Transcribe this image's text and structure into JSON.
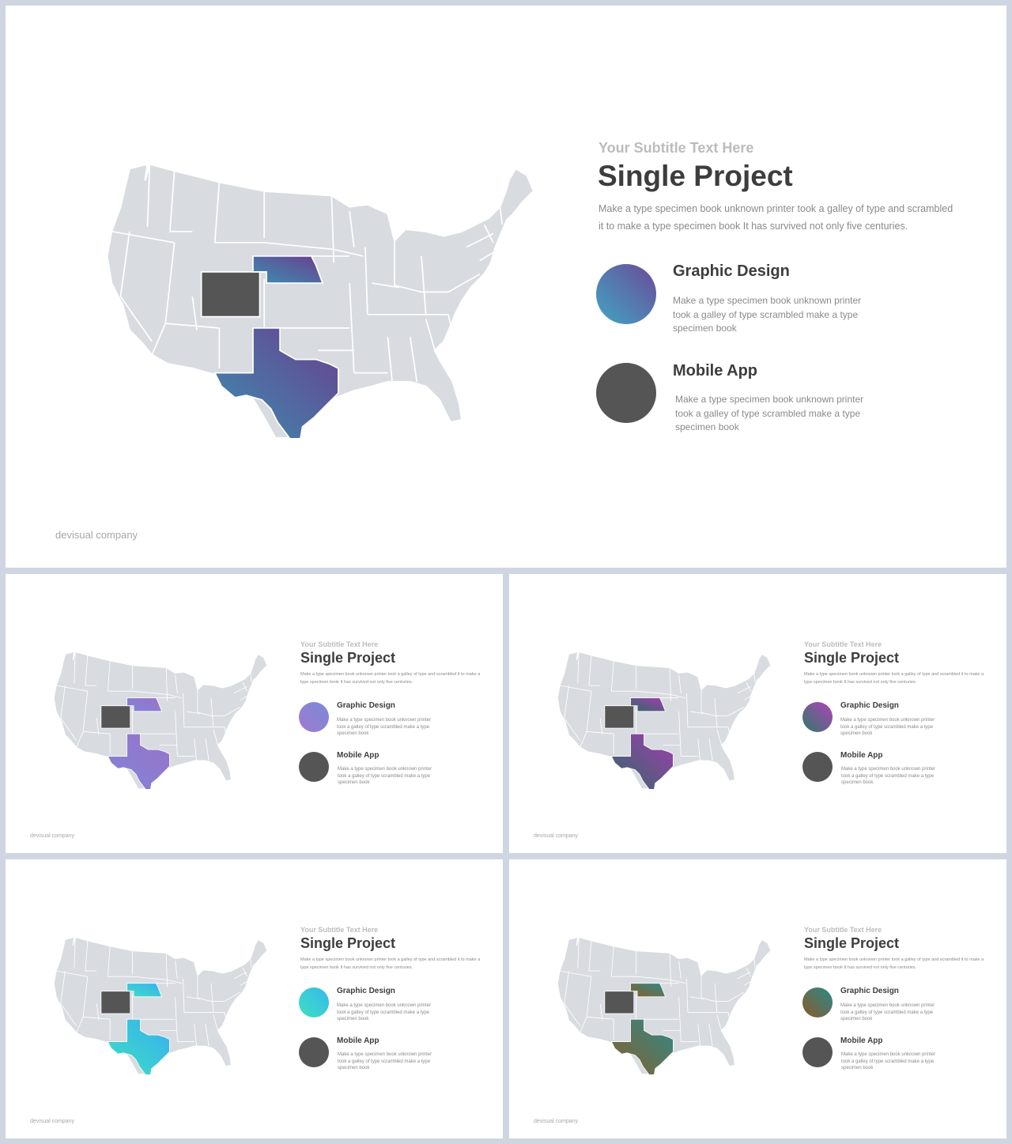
{
  "slides": [
    {
      "id": "large",
      "subtitle": "Your Subtitle Text Here",
      "title": "Single Project",
      "description": "Make a type specimen book unknown printer took a galley of type and scrambled it to make a type specimen book It has survived not only five centuries.",
      "items": [
        {
          "title": "Graphic Design",
          "text": "Make a type specimen book unknown printer took a galley of type scrambled make a type specimen book",
          "colors": [
            "#41a6c4",
            "#6a4a98"
          ]
        },
        {
          "title": "Mobile App",
          "text": "Make a type specimen book unknown printer took a galley of type scrambled make a type specimen book",
          "colors": [
            "#555555",
            "#555555"
          ]
        }
      ],
      "company": "devisual company",
      "highlight_colors": [
        "#3b8fb1",
        "#6a3f8e"
      ]
    },
    {
      "id": "s1",
      "subtitle": "Your Subtitle Text Here",
      "title": "Single Project",
      "description": "Make a type specimen book unknown printer took a galley of type and scrambled it to make a type specimen book It has survived not only five centuries.",
      "items": [
        {
          "title": "Graphic Design",
          "text": "Make a type specimen book unknown printer took a galley of type scrambled make a type specimen book",
          "colors": [
            "#a07ad0",
            "#7a8ad8"
          ]
        },
        {
          "title": "Mobile App",
          "text": "Make a type specimen book unknown printer took a galley of type scrambled make a type specimen book",
          "colors": [
            "#555555",
            "#555555"
          ]
        }
      ],
      "company": "devisual company",
      "highlight_colors": [
        "#7f85d8",
        "#9a72c8"
      ]
    },
    {
      "id": "s2",
      "subtitle": "Your Subtitle Text Here",
      "title": "Single Project",
      "description": "Make a type specimen book unknown printer took a galley of type and scrambled it to make a type specimen book It has survived not only five centuries.",
      "items": [
        {
          "title": "Graphic Design",
          "text": "Make a type specimen book unknown printer took a galley of type scrambled make a type specimen book",
          "colors": [
            "#2f7a6a",
            "#b042b8"
          ]
        },
        {
          "title": "Mobile App",
          "text": "Make a type specimen book unknown printer took a galley of type scrambled make a type specimen book",
          "colors": [
            "#555555",
            "#555555"
          ]
        }
      ],
      "company": "devisual company",
      "highlight_colors": [
        "#2f6b66",
        "#a23cb0"
      ]
    },
    {
      "id": "s3",
      "subtitle": "Your Subtitle Text Here",
      "title": "Single Project",
      "description": "Make a type specimen book unknown printer took a galley of type and scrambled it to make a type specimen book It has survived not only five centuries.",
      "items": [
        {
          "title": "Graphic Design",
          "text": "Make a type specimen book unknown printer took a galley of type scrambled make a type specimen book",
          "colors": [
            "#3fe0c0",
            "#35b8ee"
          ]
        },
        {
          "title": "Mobile App",
          "text": "Make a type specimen book unknown printer took a galley of type scrambled make a type specimen book",
          "colors": [
            "#555555",
            "#555555"
          ]
        }
      ],
      "company": "devisual company",
      "highlight_colors": [
        "#3ee0c2",
        "#38aef0"
      ]
    },
    {
      "id": "s4",
      "subtitle": "Your Subtitle Text Here",
      "title": "Single Project",
      "description": "Make a type specimen book unknown printer took a galley of type and scrambled it to make a type specimen book It has survived not only five centuries.",
      "items": [
        {
          "title": "Graphic Design",
          "text": "Make a type specimen book unknown printer took a galley of type scrambled make a type specimen book",
          "colors": [
            "#8a5a2a",
            "#2a8a8a"
          ]
        },
        {
          "title": "Mobile App",
          "text": "Make a type specimen book unknown printer took a galley of type scrambled make a type specimen book",
          "colors": [
            "#555555",
            "#555555"
          ]
        }
      ],
      "company": "devisual company",
      "highlight_colors": [
        "#8a5e2c",
        "#2e8a88"
      ]
    }
  ],
  "map": {
    "base_color": "#d8dbe0",
    "border_color": "#ffffff",
    "dark_state_color": "#555555"
  }
}
